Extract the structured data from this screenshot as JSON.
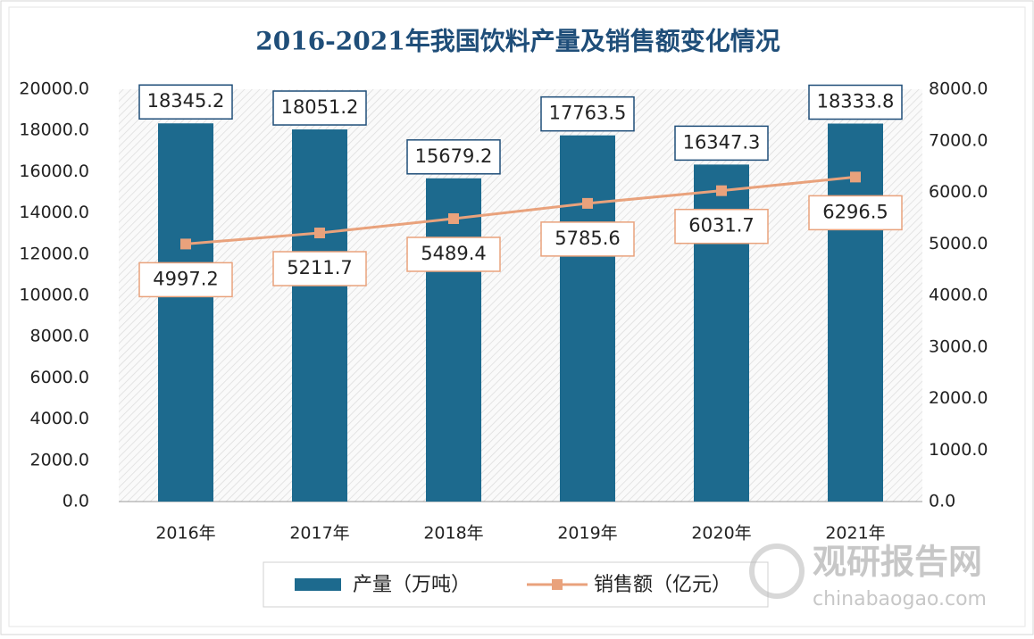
{
  "chart_data": {
    "type": "bar",
    "title": "2016-2021年我国饮料产量及销售额变化情况",
    "categories": [
      "2016年",
      "2017年",
      "2018年",
      "2019年",
      "2020年",
      "2021年"
    ],
    "series": [
      {
        "name": "产量（万吨）",
        "type": "bar",
        "color": "#1d6a8e",
        "values": [
          18345.2,
          18051.2,
          15679.2,
          17763.5,
          16347.3,
          18333.8
        ]
      },
      {
        "name": "销售额（亿元）",
        "type": "line",
        "axis": "y2",
        "color": "#e9a27c",
        "values": [
          4997.2,
          5211.7,
          5489.4,
          5785.6,
          6031.7,
          6296.5
        ]
      }
    ],
    "ylim": [
      0,
      20000
    ],
    "yticks": [
      {
        "value": 0,
        "label": "0.0"
      },
      {
        "value": 2000,
        "label": "2000.0"
      },
      {
        "value": 4000,
        "label": "4000.0"
      },
      {
        "value": 6000,
        "label": "6000.0"
      },
      {
        "value": 8000,
        "label": "8000.0"
      },
      {
        "value": 10000,
        "label": "10000.0"
      },
      {
        "value": 12000,
        "label": "12000.0"
      },
      {
        "value": 14000,
        "label": "14000.0"
      },
      {
        "value": 16000,
        "label": "16000.0"
      },
      {
        "value": 18000,
        "label": "18000.0"
      },
      {
        "value": 20000,
        "label": "20000.0"
      }
    ],
    "y2lim": [
      0,
      8000
    ],
    "y2ticks": [
      {
        "value": 0,
        "label": "0.0"
      },
      {
        "value": 1000,
        "label": "1000.0"
      },
      {
        "value": 2000,
        "label": "2000.0"
      },
      {
        "value": 3000,
        "label": "3000.0"
      },
      {
        "value": 4000,
        "label": "4000.0"
      },
      {
        "value": 5000,
        "label": "5000.0"
      },
      {
        "value": 6000,
        "label": "6000.0"
      },
      {
        "value": 7000,
        "label": "7000.0"
      },
      {
        "value": 8000,
        "label": "8000.0"
      }
    ],
    "legend": "bottom",
    "watermark": {
      "brand": "观研报告网",
      "site": "chinabaogao.com"
    }
  }
}
